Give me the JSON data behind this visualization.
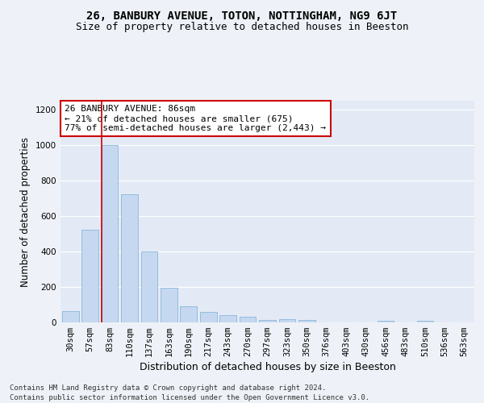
{
  "title1": "26, BANBURY AVENUE, TOTON, NOTTINGHAM, NG9 6JT",
  "title2": "Size of property relative to detached houses in Beeston",
  "xlabel": "Distribution of detached houses by size in Beeston",
  "ylabel": "Number of detached properties",
  "footer1": "Contains HM Land Registry data © Crown copyright and database right 2024.",
  "footer2": "Contains public sector information licensed under the Open Government Licence v3.0.",
  "categories": [
    "30sqm",
    "57sqm",
    "83sqm",
    "110sqm",
    "137sqm",
    "163sqm",
    "190sqm",
    "217sqm",
    "243sqm",
    "270sqm",
    "297sqm",
    "323sqm",
    "350sqm",
    "376sqm",
    "403sqm",
    "430sqm",
    "456sqm",
    "483sqm",
    "510sqm",
    "536sqm",
    "563sqm"
  ],
  "values": [
    65,
    525,
    1000,
    725,
    400,
    195,
    90,
    60,
    40,
    32,
    15,
    20,
    15,
    0,
    0,
    0,
    10,
    0,
    10,
    0,
    0
  ],
  "bar_color": "#c5d8f0",
  "bar_edge_color": "#7bafd4",
  "highlight_bar_index": 2,
  "highlight_line_color": "#cc0000",
  "annotation_text": "26 BANBURY AVENUE: 86sqm\n← 21% of detached houses are smaller (675)\n77% of semi-detached houses are larger (2,443) →",
  "annotation_box_color": "#ffffff",
  "annotation_box_edge_color": "#cc0000",
  "ylim": [
    0,
    1250
  ],
  "yticks": [
    0,
    200,
    400,
    600,
    800,
    1000,
    1200
  ],
  "bg_color": "#eef2f8",
  "plot_bg_color": "#e4eaf5",
  "grid_color": "#ffffff",
  "title1_fontsize": 10,
  "title2_fontsize": 9,
  "xlabel_fontsize": 9,
  "ylabel_fontsize": 8.5,
  "tick_fontsize": 7.5,
  "annotation_fontsize": 8,
  "footer_fontsize": 6.5
}
